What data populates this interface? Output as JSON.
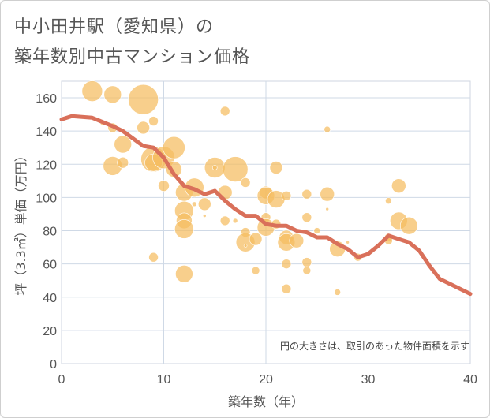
{
  "title_line1": "中小田井駅（愛知県）の",
  "title_line2": "築年数別中古マンション価格",
  "chart_data": {
    "type": "scatter",
    "xlabel": "築年数（年）",
    "ylabel": "坪（3.3㎡）単価（万円）",
    "xlim": [
      0,
      40
    ],
    "ylim": [
      0,
      170
    ],
    "x_ticks": [
      "0",
      "10",
      "20",
      "30",
      "40"
    ],
    "y_ticks": [
      "0",
      "20",
      "40",
      "60",
      "80",
      "100",
      "120",
      "140",
      "160"
    ],
    "grid": true,
    "annotation": "円の大きさは、取引のあった物件面積を示す",
    "colors": {
      "bubble": "#f5bd5f",
      "line": "#d9705a"
    },
    "bubbles": [
      {
        "x": 3,
        "y": 164,
        "s": 13
      },
      {
        "x": 4,
        "y": 145,
        "s": 3
      },
      {
        "x": 5,
        "y": 162,
        "s": 11
      },
      {
        "x": 5,
        "y": 142,
        "s": 6
      },
      {
        "x": 5,
        "y": 119,
        "s": 12
      },
      {
        "x": 6,
        "y": 132,
        "s": 11
      },
      {
        "x": 6,
        "y": 121,
        "s": 7
      },
      {
        "x": 8,
        "y": 159,
        "s": 19
      },
      {
        "x": 8,
        "y": 142,
        "s": 8
      },
      {
        "x": 9,
        "y": 146,
        "s": 6
      },
      {
        "x": 9,
        "y": 123,
        "s": 16
      },
      {
        "x": 9,
        "y": 121,
        "s": 11
      },
      {
        "x": 9,
        "y": 64,
        "s": 6
      },
      {
        "x": 10,
        "y": 124,
        "s": 14
      },
      {
        "x": 10,
        "y": 107,
        "s": 7
      },
      {
        "x": 11,
        "y": 130,
        "s": 14
      },
      {
        "x": 11,
        "y": 117,
        "s": 10
      },
      {
        "x": 12,
        "y": 103,
        "s": 11
      },
      {
        "x": 12,
        "y": 92,
        "s": 12
      },
      {
        "x": 12,
        "y": 86,
        "s": 10
      },
      {
        "x": 12,
        "y": 81,
        "s": 12
      },
      {
        "x": 12,
        "y": 54,
        "s": 11
      },
      {
        "x": 13,
        "y": 106,
        "s": 12
      },
      {
        "x": 13,
        "y": 96,
        "s": 3
      },
      {
        "x": 14,
        "y": 96,
        "s": 8
      },
      {
        "x": 14,
        "y": 89,
        "s": 2
      },
      {
        "x": 15,
        "y": 118,
        "s": 13
      },
      {
        "x": 15,
        "y": 118,
        "s": 3
      },
      {
        "x": 16,
        "y": 152,
        "s": 6
      },
      {
        "x": 16,
        "y": 103,
        "s": 9
      },
      {
        "x": 16,
        "y": 86,
        "s": 6
      },
      {
        "x": 17,
        "y": 117,
        "s": 16
      },
      {
        "x": 17,
        "y": 86,
        "s": 3
      },
      {
        "x": 18,
        "y": 109,
        "s": 6
      },
      {
        "x": 18,
        "y": 79,
        "s": 6
      },
      {
        "x": 18,
        "y": 73,
        "s": 12
      },
      {
        "x": 18,
        "y": 71,
        "s": 2
      },
      {
        "x": 19,
        "y": 75,
        "s": 8
      },
      {
        "x": 19,
        "y": 56,
        "s": 5
      },
      {
        "x": 20,
        "y": 103,
        "s": 8
      },
      {
        "x": 20,
        "y": 101,
        "s": 11
      },
      {
        "x": 20,
        "y": 88,
        "s": 6
      },
      {
        "x": 20,
        "y": 82,
        "s": 11
      },
      {
        "x": 21,
        "y": 118,
        "s": 8
      },
      {
        "x": 21,
        "y": 99,
        "s": 11
      },
      {
        "x": 21,
        "y": 84,
        "s": 6
      },
      {
        "x": 22,
        "y": 101,
        "s": 6
      },
      {
        "x": 22,
        "y": 76,
        "s": 9
      },
      {
        "x": 22,
        "y": 73,
        "s": 11
      },
      {
        "x": 22,
        "y": 60,
        "s": 6
      },
      {
        "x": 22,
        "y": 45,
        "s": 6
      },
      {
        "x": 23,
        "y": 74,
        "s": 9
      },
      {
        "x": 24,
        "y": 102,
        "s": 6
      },
      {
        "x": 24,
        "y": 88,
        "s": 6
      },
      {
        "x": 24,
        "y": 61,
        "s": 6
      },
      {
        "x": 24,
        "y": 56,
        "s": 5
      },
      {
        "x": 25,
        "y": 80,
        "s": 4
      },
      {
        "x": 26,
        "y": 141,
        "s": 4
      },
      {
        "x": 26,
        "y": 102,
        "s": 9
      },
      {
        "x": 26,
        "y": 93,
        "s": 2
      },
      {
        "x": 27,
        "y": 69,
        "s": 10
      },
      {
        "x": 27,
        "y": 43,
        "s": 4
      },
      {
        "x": 28,
        "y": 73,
        "s": 2
      },
      {
        "x": 29,
        "y": 64,
        "s": 5
      },
      {
        "x": 32,
        "y": 98,
        "s": 4
      },
      {
        "x": 32,
        "y": 76,
        "s": 5
      },
      {
        "x": 32,
        "y": 74,
        "s": 5
      },
      {
        "x": 33,
        "y": 107,
        "s": 9
      },
      {
        "x": 33,
        "y": 86,
        "s": 11
      },
      {
        "x": 34,
        "y": 83,
        "s": 11
      }
    ],
    "line": {
      "x": [
        0,
        1,
        3,
        5,
        6,
        8,
        9,
        10,
        11,
        12,
        13,
        14,
        15,
        16,
        17,
        18,
        19,
        20,
        21,
        22,
        23,
        24,
        25,
        26,
        27,
        28,
        29,
        30,
        31,
        32,
        33,
        34,
        35,
        36,
        37,
        38,
        40
      ],
      "y": [
        147,
        149,
        148,
        143,
        140,
        131,
        130,
        124,
        114,
        107,
        105,
        102,
        104,
        98,
        93,
        89,
        89,
        84,
        83,
        83,
        80,
        79,
        76,
        76,
        72,
        69,
        64,
        66,
        71,
        77,
        75,
        73,
        68,
        59,
        51,
        48,
        42
      ]
    }
  }
}
